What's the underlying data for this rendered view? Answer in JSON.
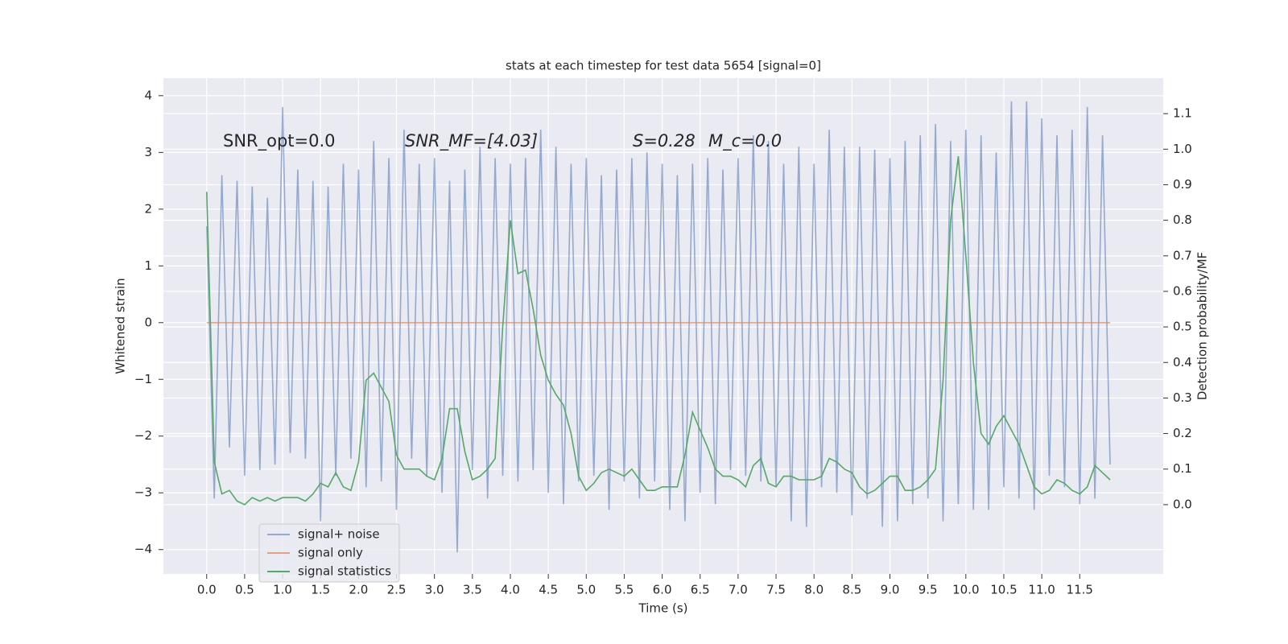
{
  "chart_data": {
    "type": "line",
    "title": "stats at each timestep for test data 5654 [signal=0]",
    "xlabel": "Time (s)",
    "ylabel": "Whitened strain",
    "y2label": "Detection probability/MF",
    "annotations": [
      "SNR_opt=0.0",
      "SNR_MF=[4.03]",
      "S=0.28",
      "M_c=0.0"
    ],
    "x": [
      0.0,
      0.1,
      0.2,
      0.3,
      0.4,
      0.5,
      0.6,
      0.7,
      0.8,
      0.9,
      1.0,
      1.1,
      1.2,
      1.3,
      1.4,
      1.5,
      1.6,
      1.7,
      1.8,
      1.9,
      2.0,
      2.1,
      2.2,
      2.3,
      2.4,
      2.5,
      2.6,
      2.7,
      2.8,
      2.9,
      3.0,
      3.1,
      3.2,
      3.3,
      3.4,
      3.5,
      3.6,
      3.7,
      3.8,
      3.9,
      4.0,
      4.1,
      4.2,
      4.3,
      4.4,
      4.5,
      4.6,
      4.7,
      4.8,
      4.9,
      5.0,
      5.1,
      5.2,
      5.3,
      5.4,
      5.5,
      5.6,
      5.7,
      5.8,
      5.9,
      6.0,
      6.1,
      6.2,
      6.3,
      6.4,
      6.5,
      6.6,
      6.7,
      6.8,
      6.9,
      7.0,
      7.1,
      7.2,
      7.3,
      7.4,
      7.5,
      7.6,
      7.7,
      7.8,
      7.9,
      8.0,
      8.1,
      8.2,
      8.3,
      8.4,
      8.5,
      8.6,
      8.7,
      8.8,
      8.9,
      9.0,
      9.1,
      9.2,
      9.3,
      9.4,
      9.5,
      9.6,
      9.7,
      9.8,
      9.9,
      10.0,
      10.1,
      10.2,
      10.3,
      10.4,
      10.5,
      10.6,
      10.7,
      10.8,
      10.9,
      11.0,
      11.1,
      11.2,
      11.3,
      11.4,
      11.5,
      11.6,
      11.7,
      11.8,
      11.9
    ],
    "series": [
      {
        "name": "signal+ noise",
        "color": "#4c72b0",
        "alpha": 0.55,
        "axis": "y",
        "values": [
          1.7,
          -3.1,
          2.6,
          -2.2,
          2.5,
          -2.7,
          2.4,
          -2.6,
          2.2,
          -2.5,
          3.8,
          -2.3,
          2.7,
          -2.4,
          2.5,
          -3.5,
          2.4,
          -2.7,
          2.8,
          -2.4,
          2.7,
          -2.9,
          3.2,
          -2.8,
          2.9,
          -3.3,
          3.4,
          -2.4,
          2.8,
          -2.7,
          2.9,
          -3.0,
          2.5,
          -4.05,
          2.7,
          -2.6,
          3.1,
          -3.1,
          2.9,
          -2.7,
          2.8,
          -2.8,
          2.9,
          -2.6,
          3.4,
          -3.0,
          3.1,
          -3.2,
          2.8,
          -2.8,
          2.9,
          -2.7,
          2.6,
          -3.3,
          2.7,
          -2.8,
          2.9,
          -3.1,
          3.0,
          -2.8,
          2.8,
          -3.3,
          2.6,
          -3.5,
          2.8,
          -3.0,
          2.9,
          -3.2,
          2.7,
          -2.6,
          2.9,
          -2.7,
          3.3,
          -2.8,
          3.2,
          -2.9,
          2.8,
          -3.5,
          3.1,
          -3.6,
          2.8,
          -2.9,
          3.4,
          -3.0,
          3.1,
          -3.4,
          3.1,
          -3.1,
          3.05,
          -3.6,
          2.9,
          -3.5,
          3.2,
          -3.2,
          3.3,
          -3.1,
          3.5,
          -3.5,
          3.2,
          -3.2,
          3.4,
          -3.3,
          3.3,
          -3.3,
          3.0,
          -2.9,
          3.9,
          -3.1,
          3.9,
          -3.3,
          3.6,
          -2.7,
          3.3,
          -2.9,
          3.4,
          -3.2,
          3.8,
          -3.1,
          3.3,
          -2.5
        ]
      },
      {
        "name": "signal only",
        "color": "#dd8452",
        "alpha": 0.7,
        "axis": "y",
        "values": [
          0,
          0,
          0,
          0,
          0,
          0,
          0,
          0,
          0,
          0,
          0,
          0,
          0,
          0,
          0,
          0,
          0,
          0,
          0,
          0,
          0,
          0,
          0,
          0,
          0,
          0,
          0,
          0,
          0,
          0,
          0,
          0,
          0,
          0,
          0,
          0,
          0,
          0,
          0,
          0,
          0,
          0,
          0,
          0,
          0,
          0,
          0,
          0,
          0,
          0,
          0,
          0,
          0,
          0,
          0,
          0,
          0,
          0,
          0,
          0,
          0,
          0,
          0,
          0,
          0,
          0,
          0,
          0,
          0,
          0,
          0,
          0,
          0,
          0,
          0,
          0,
          0,
          0,
          0,
          0,
          0,
          0,
          0,
          0,
          0,
          0,
          0,
          0,
          0,
          0,
          0,
          0,
          0,
          0,
          0,
          0,
          0,
          0,
          0,
          0,
          0,
          0,
          0,
          0,
          0,
          0,
          0,
          0,
          0,
          0,
          0,
          0,
          0,
          0,
          0,
          0,
          0,
          0,
          0,
          0
        ]
      },
      {
        "name": "signal statistics",
        "color": "#55a868",
        "alpha": 1,
        "axis": "y2",
        "values": [
          0.88,
          0.12,
          0.03,
          0.04,
          0.01,
          0.0,
          0.02,
          0.01,
          0.02,
          0.01,
          0.02,
          0.02,
          0.02,
          0.01,
          0.03,
          0.06,
          0.05,
          0.09,
          0.05,
          0.04,
          0.12,
          0.35,
          0.37,
          0.33,
          0.29,
          0.14,
          0.1,
          0.1,
          0.1,
          0.08,
          0.07,
          0.13,
          0.27,
          0.27,
          0.15,
          0.07,
          0.08,
          0.1,
          0.13,
          0.5,
          0.8,
          0.65,
          0.66,
          0.55,
          0.42,
          0.35,
          0.31,
          0.28,
          0.2,
          0.08,
          0.04,
          0.06,
          0.09,
          0.1,
          0.09,
          0.08,
          0.1,
          0.07,
          0.04,
          0.04,
          0.05,
          0.05,
          0.05,
          0.14,
          0.26,
          0.21,
          0.16,
          0.1,
          0.08,
          0.08,
          0.07,
          0.05,
          0.11,
          0.13,
          0.06,
          0.05,
          0.08,
          0.08,
          0.07,
          0.07,
          0.07,
          0.08,
          0.13,
          0.12,
          0.1,
          0.09,
          0.05,
          0.03,
          0.04,
          0.06,
          0.08,
          0.08,
          0.04,
          0.04,
          0.05,
          0.07,
          0.1,
          0.35,
          0.8,
          0.98,
          0.7,
          0.4,
          0.2,
          0.17,
          0.22,
          0.25,
          0.21,
          0.17,
          0.11,
          0.05,
          0.03,
          0.04,
          0.07,
          0.06,
          0.04,
          0.03,
          0.05,
          0.11,
          0.09,
          0.07
        ]
      }
    ],
    "xlim": [
      -0.57,
      12.6
    ],
    "xticks": [
      {
        "value": 0,
        "label": "0.0"
      },
      {
        "value": 0.5,
        "label": "0.5"
      },
      {
        "value": 1,
        "label": "1.0"
      },
      {
        "value": 1.5,
        "label": "1.5"
      },
      {
        "value": 2,
        "label": "2.0"
      },
      {
        "value": 2.5,
        "label": "2.5"
      },
      {
        "value": 3,
        "label": "3.0"
      },
      {
        "value": 3.5,
        "label": "3.5"
      },
      {
        "value": 4,
        "label": "4.0"
      },
      {
        "value": 4.5,
        "label": "4.5"
      },
      {
        "value": 5,
        "label": "5.0"
      },
      {
        "value": 5.5,
        "label": "5.5"
      },
      {
        "value": 6,
        "label": "6.0"
      },
      {
        "value": 6.5,
        "label": "6.5"
      },
      {
        "value": 7,
        "label": "7.0"
      },
      {
        "value": 7.5,
        "label": "7.5"
      },
      {
        "value": 8,
        "label": "8.0"
      },
      {
        "value": 8.5,
        "label": "8.5"
      },
      {
        "value": 9,
        "label": "9.0"
      },
      {
        "value": 9.5,
        "label": "9.5"
      },
      {
        "value": 10,
        "label": "10.0"
      },
      {
        "value": 10.5,
        "label": "10.5"
      },
      {
        "value": 11,
        "label": "11.0"
      },
      {
        "value": 11.5,
        "label": "11.5"
      }
    ],
    "ylim": [
      -4.43,
      4.31
    ],
    "yticks": [
      {
        "value": -4,
        "label": "−4"
      },
      {
        "value": -3,
        "label": "−3"
      },
      {
        "value": -2,
        "label": "−2"
      },
      {
        "value": -1,
        "label": "−1"
      },
      0,
      1,
      2,
      3,
      4
    ],
    "y2lim": [
      -0.195,
      1.2
    ],
    "y2ticks": [
      {
        "value": 0,
        "label": "0.0"
      },
      {
        "value": 0.1,
        "label": "0.1"
      },
      {
        "value": 0.2,
        "label": "0.2"
      },
      {
        "value": 0.3,
        "label": "0.3"
      },
      {
        "value": 0.4,
        "label": "0.4"
      },
      {
        "value": 0.5,
        "label": "0.5"
      },
      {
        "value": 0.6,
        "label": "0.6"
      },
      {
        "value": 0.7,
        "label": "0.7"
      },
      {
        "value": 0.8,
        "label": "0.8"
      },
      {
        "value": 0.9,
        "label": "0.9"
      },
      {
        "value": 1,
        "label": "1.0"
      },
      {
        "value": 1.1,
        "label": "1.1"
      }
    ],
    "grid": true,
    "legend": "lower left"
  }
}
